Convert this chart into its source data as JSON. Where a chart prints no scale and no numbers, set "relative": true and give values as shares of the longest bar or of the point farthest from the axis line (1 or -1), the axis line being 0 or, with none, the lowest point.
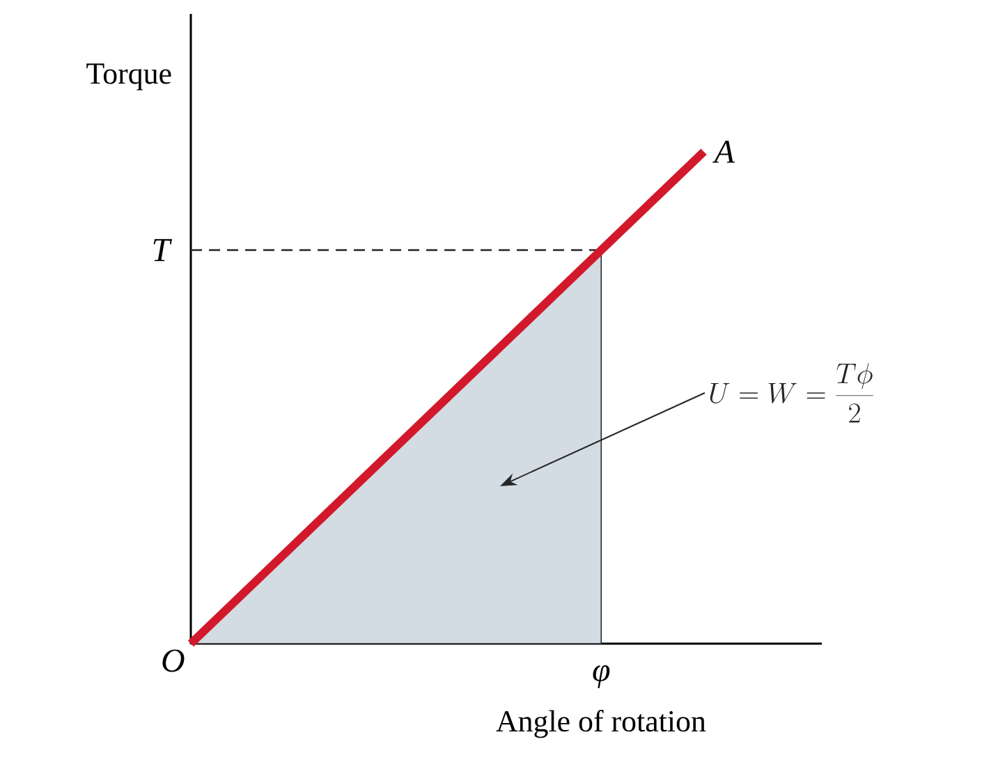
{
  "chart_data": {
    "type": "line",
    "xlabel": "Angle of rotation",
    "ylabel": "Torque",
    "relative": true,
    "categories": [
      null,
      null,
      null,
      null,
      null,
      null
    ],
    "series": [
      {
        "type": "area",
        "color": "#d3dbe3",
        "values": [
          0,
          0.2,
          0.4,
          0.6,
          0.8,
          null
        ]
      },
      {
        "name": "*A*",
        "color": "#d2192b",
        "values": [
          0,
          0.2,
          0.4,
          0.6,
          0.8,
          1
        ]
      }
    ],
    "ref_lines": [
      {
        "axis": "y",
        "value": 0.8,
        "line_style": "dashed",
        "color": "#222222"
      }
    ],
    "annotations": [
      "*O*",
      "*T*",
      "*φ*",
      "U = W = \\frac{T\\phi}{2}"
    ],
    "marker": "none",
    "line_style": "solid"
  }
}
